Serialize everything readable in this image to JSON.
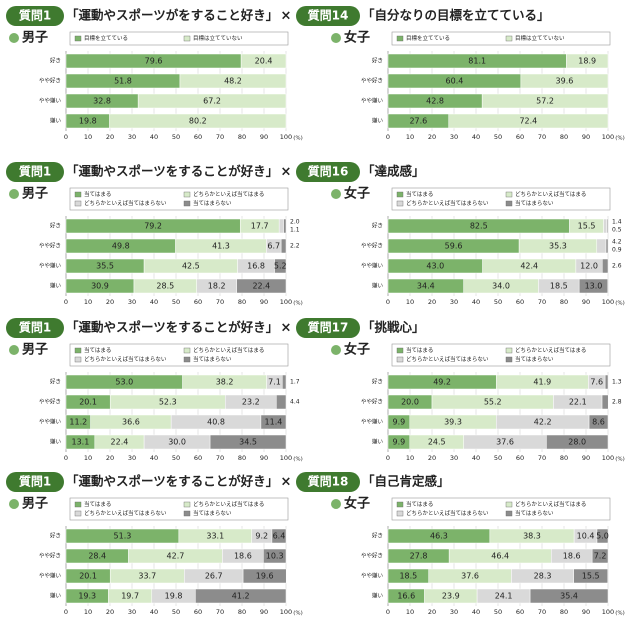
{
  "rows": [
    {
      "left_question": "質問1",
      "left_title": "「運動やスポーツがをすること好き」",
      "cross": "×",
      "right_question": "質問14",
      "right_title": "「自分なりの目標を立てている」"
    },
    {
      "left_question": "質問1",
      "left_title": "「運動やスポーツをすることが好き」",
      "cross": "×",
      "right_question": "質問16",
      "right_title": "「達成感」"
    },
    {
      "left_question": "質問1",
      "left_title": "「運動やスポーツをすることが好き」",
      "cross": "×",
      "right_question": "質問17",
      "right_title": "「挑戦心」"
    },
    {
      "left_question": "質問1",
      "left_title": "「運動やスポーツをすることが好き」",
      "cross": "×",
      "right_question": "質問18",
      "right_title": "「自己肯定感」"
    }
  ],
  "chart_data": [
    {
      "type": "bar",
      "orientation": "horizontal",
      "stacked": true,
      "panel_label": "男子",
      "categories": [
        "好き",
        "やや好き",
        "やや嫌い",
        "嫌い"
      ],
      "series": [
        {
          "name": "目標を立てている",
          "color": "#7cb36a",
          "values": [
            79.6,
            51.8,
            32.8,
            19.8
          ]
        },
        {
          "name": "目標は立てていない",
          "color": "#d7eac9",
          "values": [
            20.4,
            48.2,
            67.2,
            80.2
          ]
        }
      ],
      "xlim": [
        0,
        100
      ],
      "xticks": [
        0,
        10,
        20,
        30,
        40,
        50,
        60,
        70,
        80,
        90,
        100
      ],
      "x_unit": "(%)",
      "grid": true
    },
    {
      "type": "bar",
      "orientation": "horizontal",
      "stacked": true,
      "panel_label": "女子",
      "categories": [
        "好き",
        "やや好き",
        "やや嫌い",
        "嫌い"
      ],
      "series": [
        {
          "name": "目標を立てている",
          "color": "#7cb36a",
          "values": [
            81.1,
            60.4,
            42.8,
            27.6
          ]
        },
        {
          "name": "目標は立てていない",
          "color": "#d7eac9",
          "values": [
            18.9,
            39.6,
            57.2,
            72.4
          ]
        }
      ],
      "xlim": [
        0,
        100
      ],
      "xticks": [
        0,
        10,
        20,
        30,
        40,
        50,
        60,
        70,
        80,
        90,
        100
      ],
      "x_unit": "(%)",
      "grid": true
    },
    {
      "type": "bar",
      "orientation": "horizontal",
      "stacked": true,
      "panel_label": "男子",
      "categories": [
        "好き",
        "やや好き",
        "やや嫌い",
        "嫌い"
      ],
      "series": [
        {
          "name": "当てはまる",
          "color": "#7cb36a",
          "values": [
            79.2,
            49.8,
            35.5,
            30.9
          ]
        },
        {
          "name": "どちらかといえば当てはまる",
          "color": "#d7eac9",
          "values": [
            17.7,
            41.3,
            42.5,
            28.5
          ]
        },
        {
          "name": "どちらかといえば当てはまらない",
          "color": "#d9d9d9",
          "values": [
            2.0,
            6.7,
            16.8,
            18.2
          ],
          "value_labels": [
            "2.0",
            "6.7",
            "16.8",
            "18.2"
          ]
        },
        {
          "name": "当てはまらない",
          "color": "#8c8c8c",
          "values": [
            1.1,
            2.2,
            5.2,
            22.4
          ]
        }
      ],
      "xlim": [
        0,
        100
      ],
      "xticks": [
        0,
        10,
        20,
        30,
        40,
        50,
        60,
        70,
        80,
        90,
        100
      ],
      "x_unit": "(%)",
      "grid": true
    },
    {
      "type": "bar",
      "orientation": "horizontal",
      "stacked": true,
      "panel_label": "女子",
      "categories": [
        "好き",
        "やや好き",
        "やや嫌い",
        "嫌い"
      ],
      "series": [
        {
          "name": "当てはまる",
          "color": "#7cb36a",
          "values": [
            82.5,
            59.6,
            43.0,
            34.4
          ],
          "value_labels": [
            "82.5",
            "59.6",
            "43.0",
            "34.4"
          ]
        },
        {
          "name": "どちらかといえば当てはまる",
          "color": "#d7eac9",
          "values": [
            15.5,
            35.3,
            42.4,
            34.0
          ],
          "value_labels": [
            "15.5",
            "35.3",
            "42.4",
            "34.0"
          ]
        },
        {
          "name": "どちらかといえば当てはまらない",
          "color": "#d9d9d9",
          "values": [
            1.4,
            4.2,
            12.0,
            18.5
          ],
          "value_labels": [
            "1.4",
            "4.2",
            "12.0",
            "18.5"
          ]
        },
        {
          "name": "当てはまらない",
          "color": "#8c8c8c",
          "values": [
            0.5,
            0.9,
            2.6,
            13.0
          ],
          "value_labels": [
            "0.5",
            "0.9",
            "2.6",
            "13.0"
          ]
        }
      ],
      "xlim": [
        0,
        100
      ],
      "xticks": [
        0,
        10,
        20,
        30,
        40,
        50,
        60,
        70,
        80,
        90,
        100
      ],
      "x_unit": "(%)",
      "grid": true
    },
    {
      "type": "bar",
      "orientation": "horizontal",
      "stacked": true,
      "panel_label": "男子",
      "categories": [
        "好き",
        "やや好き",
        "やや嫌い",
        "嫌い"
      ],
      "series": [
        {
          "name": "当てはまる",
          "color": "#7cb36a",
          "values": [
            53.0,
            20.1,
            11.2,
            13.1
          ],
          "value_labels": [
            "53.0",
            "20.1",
            "11.2",
            "13.1"
          ]
        },
        {
          "name": "どちらかといえば当てはまる",
          "color": "#d7eac9",
          "values": [
            38.2,
            52.3,
            36.6,
            22.4
          ]
        },
        {
          "name": "どちらかといえば当てはまらない",
          "color": "#d9d9d9",
          "values": [
            7.1,
            23.2,
            40.8,
            30.0
          ],
          "value_labels": [
            "7.1",
            "23.2",
            "40.8",
            "30.0"
          ]
        },
        {
          "name": "当てはまらない",
          "color": "#8c8c8c",
          "values": [
            1.7,
            4.4,
            11.4,
            34.5
          ]
        }
      ],
      "xlim": [
        0,
        100
      ],
      "xticks": [
        0,
        10,
        20,
        30,
        40,
        50,
        60,
        70,
        80,
        90,
        100
      ],
      "x_unit": "(%)",
      "grid": true
    },
    {
      "type": "bar",
      "orientation": "horizontal",
      "stacked": true,
      "panel_label": "女子",
      "categories": [
        "好き",
        "やや好き",
        "やや嫌い",
        "嫌い"
      ],
      "series": [
        {
          "name": "当てはまる",
          "color": "#7cb36a",
          "values": [
            49.2,
            20.0,
            9.9,
            9.9
          ],
          "value_labels": [
            "49.2",
            "20.0",
            "9.9",
            "9.9"
          ]
        },
        {
          "name": "どちらかといえば当てはまる",
          "color": "#d7eac9",
          "values": [
            41.9,
            55.2,
            39.3,
            24.5
          ]
        },
        {
          "name": "どちらかといえば当てはまらない",
          "color": "#d9d9d9",
          "values": [
            7.6,
            22.1,
            42.2,
            37.6
          ]
        },
        {
          "name": "当てはまらない",
          "color": "#8c8c8c",
          "values": [
            1.3,
            2.8,
            8.6,
            28.0
          ],
          "value_labels": [
            "1.3",
            "2.8",
            "8.6",
            "28.0"
          ]
        }
      ],
      "xlim": [
        0,
        100
      ],
      "xticks": [
        0,
        10,
        20,
        30,
        40,
        50,
        60,
        70,
        80,
        90,
        100
      ],
      "x_unit": "(%)",
      "grid": true
    },
    {
      "type": "bar",
      "orientation": "horizontal",
      "stacked": true,
      "panel_label": "男子",
      "categories": [
        "好き",
        "やや好き",
        "やや嫌い",
        "嫌い"
      ],
      "series": [
        {
          "name": "当てはまる",
          "color": "#7cb36a",
          "values": [
            51.3,
            28.4,
            20.1,
            19.3
          ]
        },
        {
          "name": "どちらかといえば当てはまる",
          "color": "#d7eac9",
          "values": [
            33.1,
            42.7,
            33.7,
            19.7
          ]
        },
        {
          "name": "どちらかといえば当てはまらない",
          "color": "#d9d9d9",
          "values": [
            9.2,
            18.6,
            26.7,
            19.8
          ]
        },
        {
          "name": "当てはまらない",
          "color": "#8c8c8c",
          "values": [
            6.4,
            10.3,
            19.6,
            41.2
          ]
        }
      ],
      "xlim": [
        0,
        100
      ],
      "xticks": [
        0,
        10,
        20,
        30,
        40,
        50,
        60,
        70,
        80,
        90,
        100
      ],
      "x_unit": "(%)",
      "grid": true
    },
    {
      "type": "bar",
      "orientation": "horizontal",
      "stacked": true,
      "panel_label": "女子",
      "categories": [
        "好き",
        "やや好き",
        "やや嫌い",
        "嫌い"
      ],
      "series": [
        {
          "name": "当てはまる",
          "color": "#7cb36a",
          "values": [
            46.3,
            27.8,
            18.5,
            16.6
          ]
        },
        {
          "name": "どちらかといえば当てはまる",
          "color": "#d7eac9",
          "values": [
            38.3,
            46.4,
            37.6,
            23.9
          ]
        },
        {
          "name": "どちらかといえば当てはまらない",
          "color": "#d9d9d9",
          "values": [
            10.4,
            18.6,
            28.3,
            24.1
          ]
        },
        {
          "name": "当てはまらない",
          "color": "#8c8c8c",
          "values": [
            5.0,
            7.2,
            15.5,
            35.4
          ],
          "value_labels": [
            "5.0",
            "7.2",
            "15.5",
            "35.4"
          ]
        }
      ],
      "xlim": [
        0,
        100
      ],
      "xticks": [
        0,
        10,
        20,
        30,
        40,
        50,
        60,
        70,
        80,
        90,
        100
      ],
      "x_unit": "(%)",
      "grid": true
    }
  ]
}
